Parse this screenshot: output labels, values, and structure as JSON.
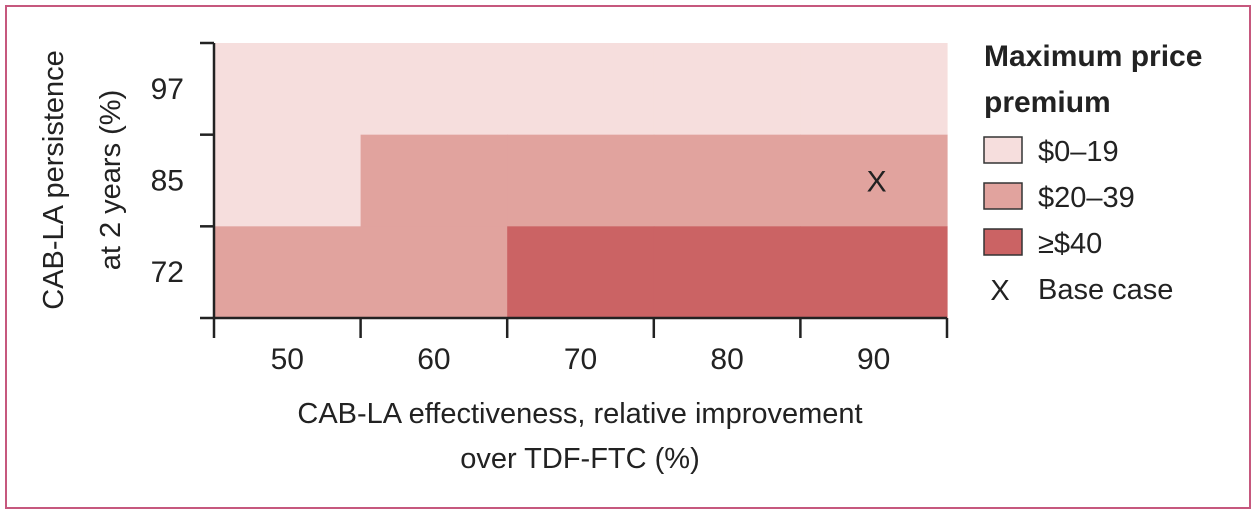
{
  "chart_data": {
    "type": "heatmap",
    "x": {
      "label_line1": "CAB-LA effectiveness, relative improvement",
      "label_line2": "over TDF-FTC (%)",
      "categories": [
        "50",
        "60",
        "70",
        "80",
        "90"
      ]
    },
    "y": {
      "label_line1": "CAB-LA persistence",
      "label_line2": "at 2 years (%)",
      "categories": [
        "72",
        "85",
        "97"
      ]
    },
    "cells": [
      [
        "0-19",
        "0-19",
        "0-19",
        "0-19",
        "0-19"
      ],
      [
        "0-19",
        "20-39",
        "20-39",
        "20-39",
        "20-39"
      ],
      [
        "20-39",
        "20-39",
        "40+",
        "40+",
        "40+"
      ]
    ],
    "cell_rows_y_order": [
      "97",
      "85",
      "72"
    ],
    "base_case": {
      "x": "90",
      "y": "85",
      "marker": "X"
    },
    "legend": {
      "title_line1": "Maximum price",
      "title_line2": "premium",
      "placement": "right",
      "items": [
        {
          "key": "0-19",
          "label": "$0–19",
          "color": "#f6dedd"
        },
        {
          "key": "20-39",
          "label": "$20–39",
          "color": "#e1a39e"
        },
        {
          "key": "40+",
          "label": "≥$40",
          "color": "#cb6364"
        }
      ],
      "base_case_marker": "X",
      "base_case_label": "Base case"
    },
    "frame_color": "#c6587e"
  }
}
